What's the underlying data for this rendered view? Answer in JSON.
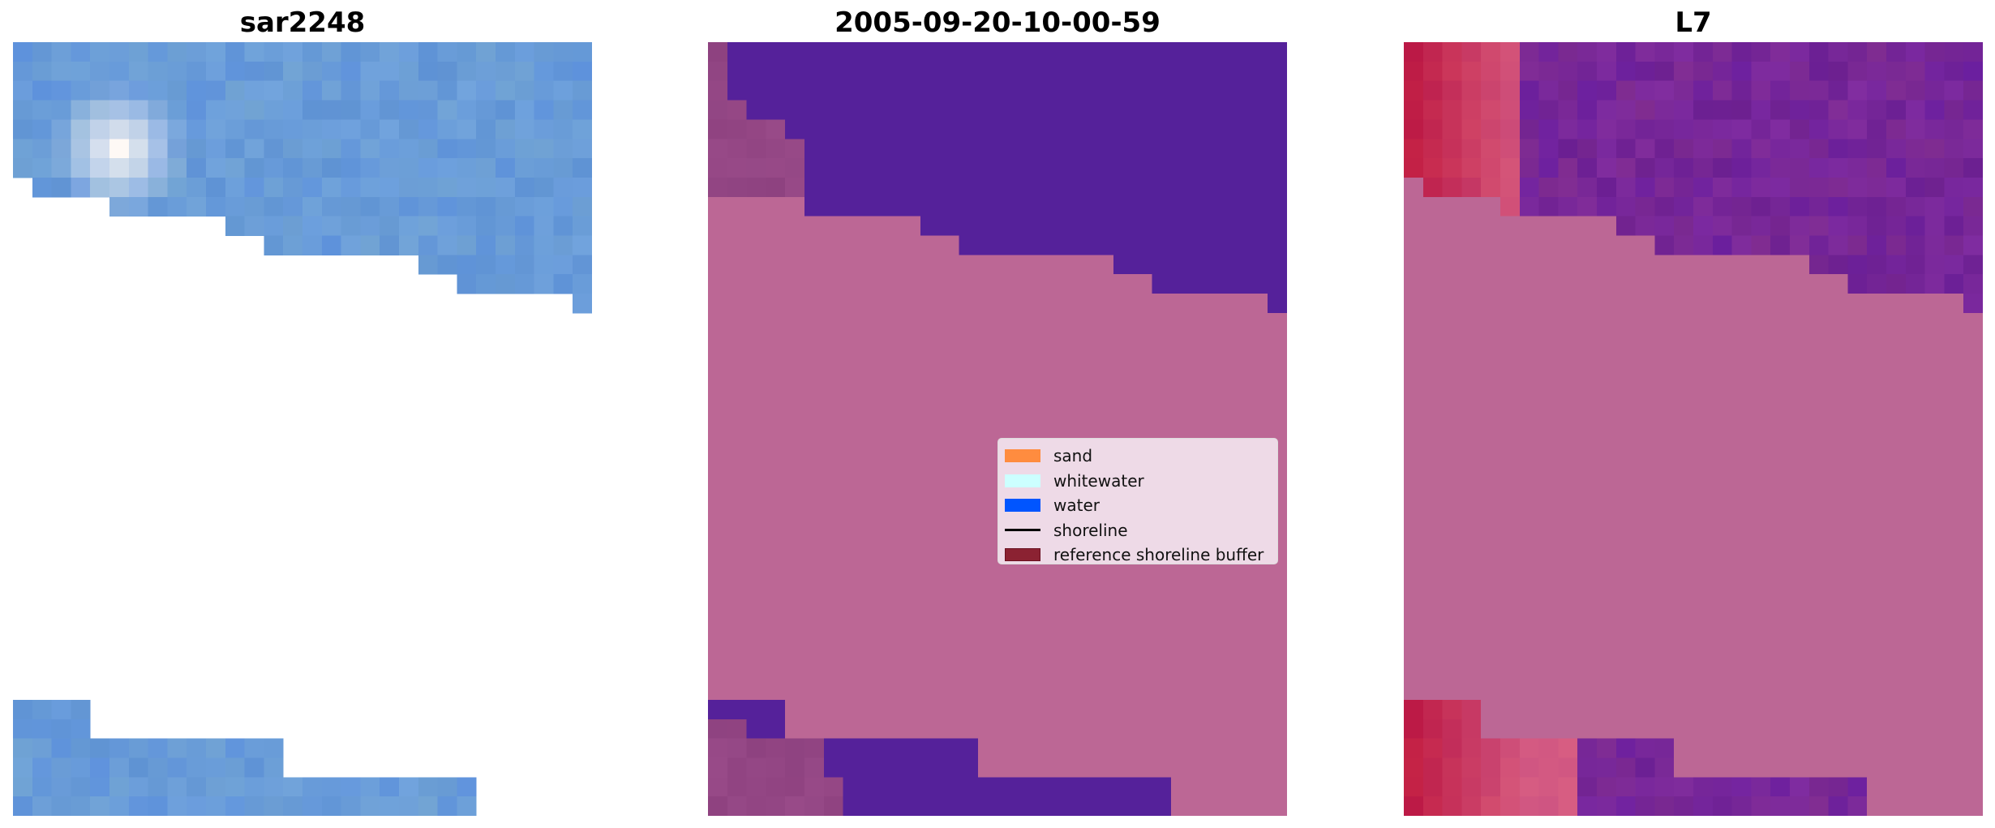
{
  "chart_data": {
    "type": "heatmap",
    "grid": {
      "cols": 30,
      "rows": 40
    },
    "panels": [
      {
        "title": "sar2248",
        "kind": "sar"
      },
      {
        "title": "2005-09-20-10-00-59",
        "kind": "classified"
      },
      {
        "title": "L7",
        "kind": "l7"
      }
    ],
    "valid_rows": [
      {
        "rows": [
          0,
          6
        ],
        "cols": [
          0,
          29
        ]
      },
      {
        "rows": [
          7,
          7
        ],
        "cols": [
          1,
          29
        ]
      },
      {
        "rows": [
          8,
          8
        ],
        "cols": [
          5,
          29
        ]
      },
      {
        "rows": [
          9,
          9
        ],
        "cols": [
          11,
          29
        ]
      },
      {
        "rows": [
          10,
          10
        ],
        "cols": [
          13,
          29
        ]
      },
      {
        "rows": [
          11,
          11
        ],
        "cols": [
          21,
          29
        ]
      },
      {
        "rows": [
          12,
          12
        ],
        "cols": [
          23,
          29
        ]
      },
      {
        "rows": [
          13,
          13
        ],
        "cols": [
          29,
          29
        ]
      },
      {
        "rows": [
          34,
          35
        ],
        "cols": [
          0,
          3
        ]
      },
      {
        "rows": [
          36,
          37
        ],
        "cols": [
          0,
          13
        ]
      },
      {
        "rows": [
          38,
          39
        ],
        "cols": [
          0,
          23
        ]
      }
    ],
    "buffer_rows": [
      {
        "rows": [
          0,
          2
        ],
        "cols": [
          0,
          0
        ]
      },
      {
        "rows": [
          3,
          3
        ],
        "cols": [
          0,
          1
        ]
      },
      {
        "rows": [
          4,
          4
        ],
        "cols": [
          0,
          3
        ]
      },
      {
        "rows": [
          5,
          7
        ],
        "cols": [
          0,
          4
        ]
      },
      {
        "rows": [
          35,
          35
        ],
        "cols": [
          0,
          1
        ]
      },
      {
        "rows": [
          36,
          37
        ],
        "cols": [
          0,
          5
        ]
      },
      {
        "rows": [
          38,
          39
        ],
        "cols": [
          0,
          6
        ]
      }
    ],
    "legend": {
      "placement": "center-right of middle panel",
      "entries": [
        {
          "label": "sand",
          "color": "#ff8c3f",
          "type": "patch"
        },
        {
          "label": "whitewater",
          "color": "#ccffff",
          "type": "patch"
        },
        {
          "label": "water",
          "color": "#0055ff",
          "type": "patch"
        },
        {
          "label": "shoreline",
          "color": "#000000",
          "type": "line"
        },
        {
          "label": "reference shoreline buffer",
          "color": "#8b2232",
          "type": "patch"
        }
      ]
    },
    "colors": {
      "sand_overlay": "#bc6795",
      "water_overlay": "#55219a",
      "buffer_overlay": "#934684"
    }
  }
}
